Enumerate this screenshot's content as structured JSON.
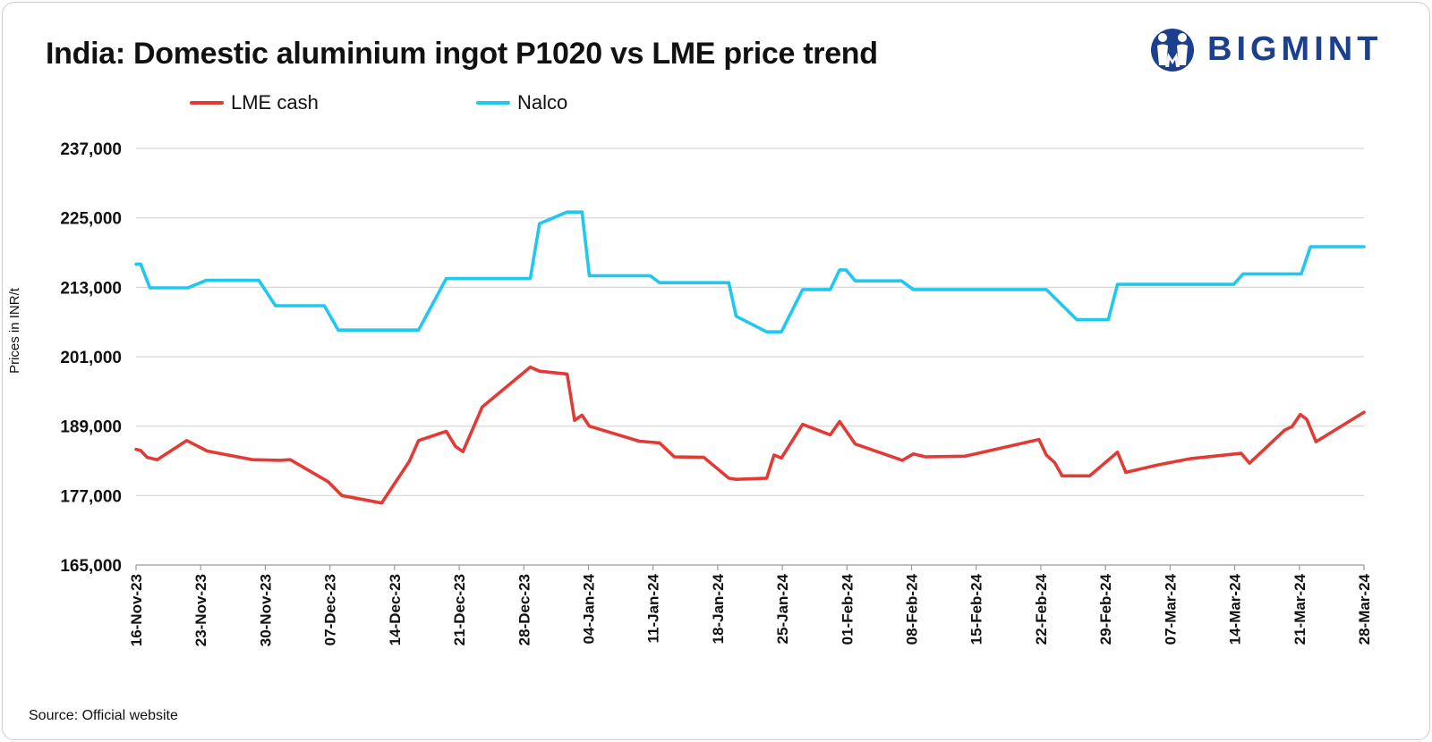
{
  "title": "India: Domestic aluminium ingot P1020 vs LME price trend",
  "brand": {
    "name": "BIGMINT",
    "logo_icon": "bigmint-people-logo-icon",
    "color": "#1c3f8e"
  },
  "source": "Source: Official website",
  "chart_data": {
    "type": "line",
    "title": "India: Domestic aluminium ingot P1020 vs LME price trend",
    "xlabel": "",
    "ylabel": "Prices in INR/t",
    "ylim": [
      165000,
      237000
    ],
    "yticks": [
      165000,
      177000,
      189000,
      201000,
      213000,
      225000,
      237000
    ],
    "ytick_labels": [
      "165,000",
      "177,000",
      "189,000",
      "201,000",
      "213,000",
      "225,000",
      "237,000"
    ],
    "grid": true,
    "legend_position": "top-left",
    "x_domain": [
      0,
      133
    ],
    "x_ticks": [
      {
        "label": "16-Nov-23",
        "day": 0
      },
      {
        "label": "23-Nov-23",
        "day": 7
      },
      {
        "label": "30-Nov-23",
        "day": 14
      },
      {
        "label": "07-Dec-23",
        "day": 21
      },
      {
        "label": "14-Dec-23",
        "day": 28
      },
      {
        "label": "21-Dec-23",
        "day": 35
      },
      {
        "label": "28-Dec-23",
        "day": 42
      },
      {
        "label": "04-Jan-24",
        "day": 49
      },
      {
        "label": "11-Jan-24",
        "day": 56
      },
      {
        "label": "18-Jan-24",
        "day": 63
      },
      {
        "label": "25-Jan-24",
        "day": 70
      },
      {
        "label": "01-Feb-24",
        "day": 77
      },
      {
        "label": "08-Feb-24",
        "day": 84
      },
      {
        "label": "15-Feb-24",
        "day": 91
      },
      {
        "label": "22-Feb-24",
        "day": 98
      },
      {
        "label": "29-Feb-24",
        "day": 105
      },
      {
        "label": "07-Mar-24",
        "day": 112
      },
      {
        "label": "14-Mar-24",
        "day": 119
      },
      {
        "label": "21-Mar-24",
        "day": 126
      },
      {
        "label": "28-Mar-24",
        "day": 133
      }
    ],
    "series": [
      {
        "name": "LME cash",
        "color": "#e23b36",
        "x": [
          0,
          0.5,
          1.2,
          2.3,
          5.5,
          7.7,
          12.6,
          15.6,
          16.7,
          20.8,
          22.3,
          26.6,
          29.6,
          30.6,
          33.6,
          34.6,
          35.4,
          37.5,
          42.7,
          43.7,
          46.7,
          47.5,
          48.3,
          49.1,
          54.5,
          56.7,
          58.3,
          61.5,
          64.2,
          65.0,
          68.3,
          69.1,
          69.9,
          72.2,
          75.2,
          76.2,
          77.9,
          83.0,
          84.2,
          85.5,
          89.8,
          97.8,
          98.6,
          99.5,
          100.3,
          103.3,
          106.3,
          107.2,
          110.7,
          114.3,
          119.7,
          120.6,
          124.4,
          125.2,
          126.1,
          126.8,
          127.8,
          133.0
        ],
        "values": [
          185000,
          184800,
          183600,
          183200,
          186500,
          184700,
          183200,
          183100,
          183200,
          179400,
          177000,
          175700,
          182900,
          186500,
          188100,
          185500,
          184600,
          192300,
          199200,
          198500,
          198000,
          190000,
          190900,
          189000,
          186400,
          186100,
          183700,
          183600,
          180000,
          179800,
          180000,
          184000,
          183500,
          189300,
          187500,
          189800,
          185900,
          183100,
          184200,
          183700,
          183800,
          186700,
          184000,
          182700,
          180400,
          180400,
          184500,
          181000,
          182300,
          183400,
          184300,
          182600,
          188300,
          188900,
          191000,
          190200,
          186300,
          191400
        ]
      },
      {
        "name": "Nalco",
        "color": "#1ec8ef",
        "x": [
          0,
          0.5,
          1.5,
          5.6,
          7.6,
          13.3,
          15.1,
          20.4,
          21.9,
          30.6,
          33.6,
          42.7,
          43.7,
          46.7,
          48.3,
          49.1,
          55.7,
          56.7,
          64.2,
          65.0,
          68.3,
          69.9,
          72.2,
          75.2,
          76.2,
          76.9,
          77.9,
          82.9,
          84.2,
          98.6,
          101.9,
          105.3,
          106.3,
          118.9,
          119.9,
          126.2,
          127.2,
          133.0
        ],
        "values": [
          217000,
          217000,
          212900,
          212900,
          214200,
          214200,
          209800,
          209800,
          205600,
          205600,
          214500,
          214500,
          224000,
          226000,
          226000,
          215000,
          215000,
          213800,
          213800,
          208000,
          205300,
          205300,
          212600,
          212600,
          216000,
          216000,
          214100,
          214100,
          212600,
          212600,
          207400,
          207400,
          213500,
          213500,
          215300,
          215300,
          220000,
          220000
        ]
      }
    ]
  }
}
